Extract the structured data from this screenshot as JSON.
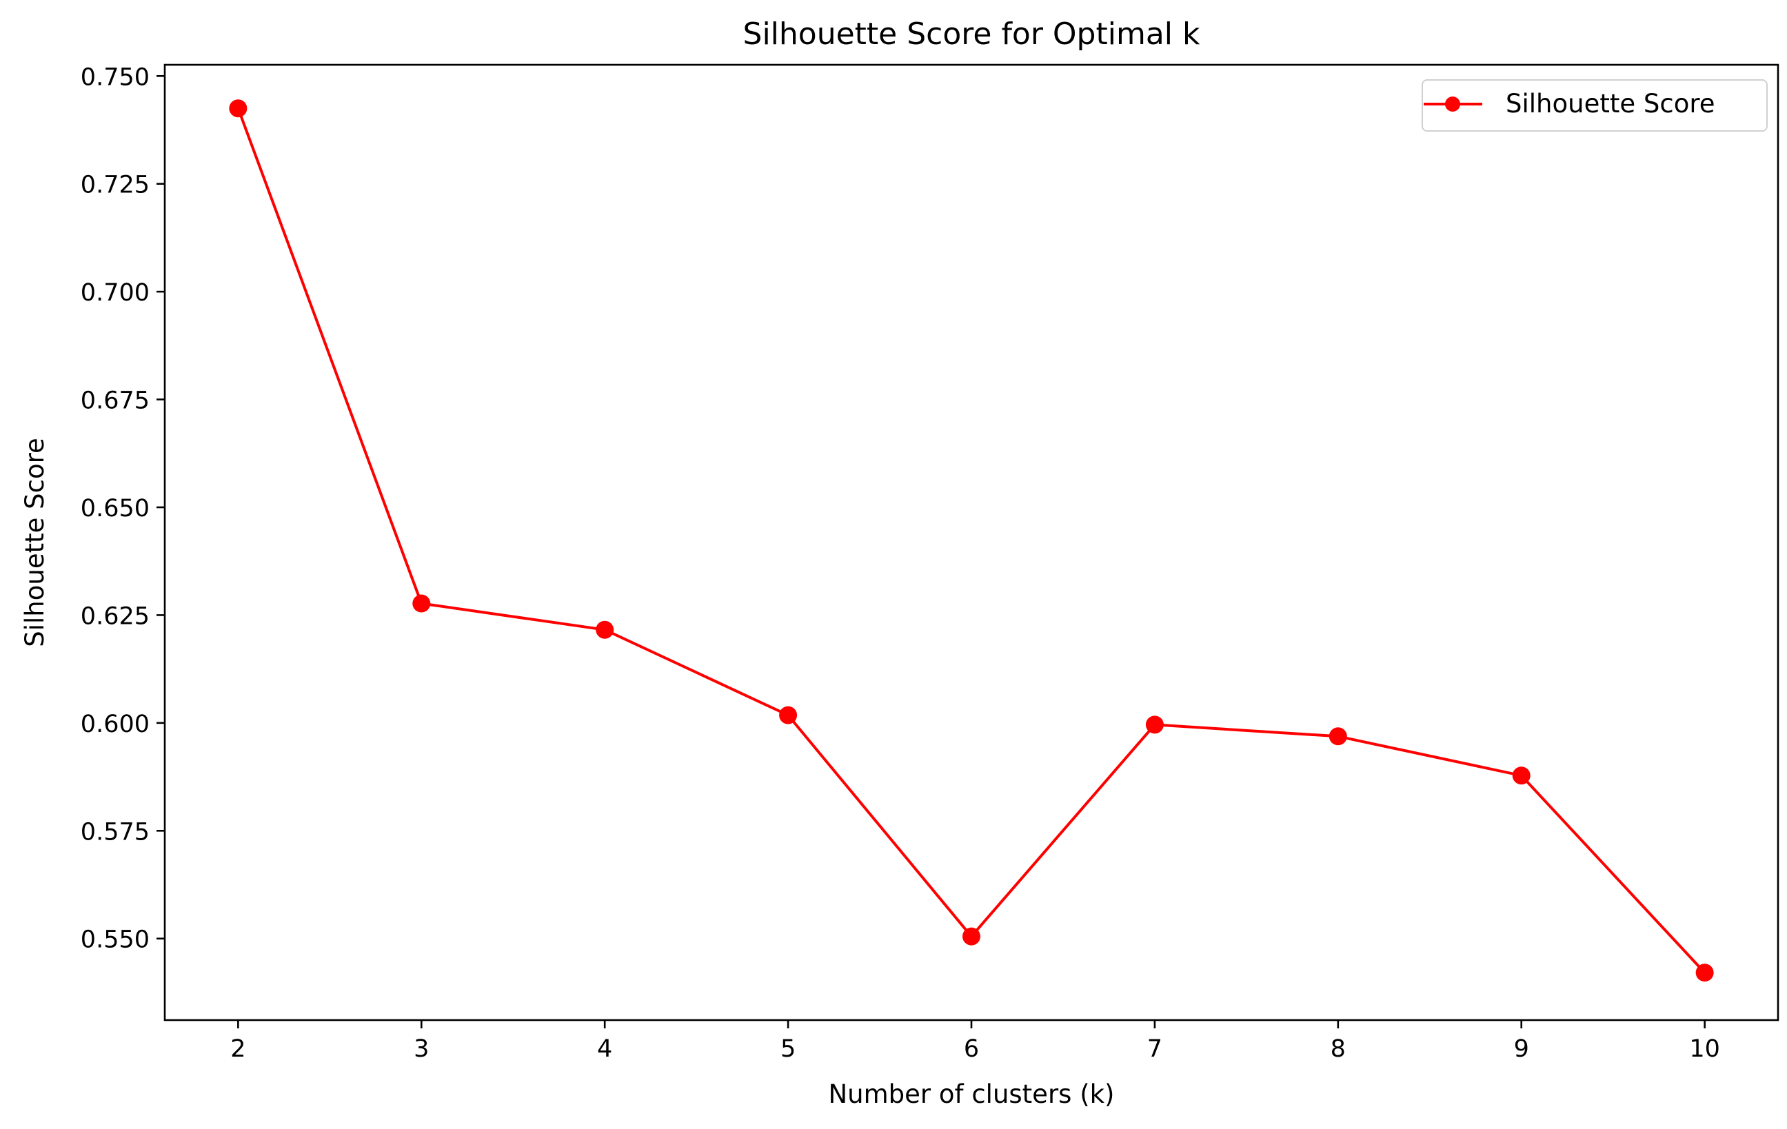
{
  "chart_data": {
    "type": "line",
    "title": "Silhouette Score for Optimal k",
    "xlabel": "Number of clusters (k)",
    "ylabel": "Silhouette Score",
    "x": [
      2,
      3,
      4,
      5,
      6,
      7,
      8,
      9,
      10
    ],
    "series": [
      {
        "name": "Silhouette Score",
        "values": [
          0.7425,
          0.6277,
          0.6216,
          0.6018,
          0.5505,
          0.5996,
          0.5969,
          0.5878,
          0.5421
        ],
        "color": "#ff0000",
        "marker": "circle"
      }
    ],
    "xlim": [
      1.6,
      10.4
    ],
    "ylim": [
      0.5311,
      0.7526
    ],
    "x_ticks": [
      "2",
      "3",
      "4",
      "5",
      "6",
      "7",
      "8",
      "9",
      "10"
    ],
    "y_ticks": [
      "0.550",
      "0.575",
      "0.600",
      "0.625",
      "0.650",
      "0.675",
      "0.700",
      "0.725",
      "0.750"
    ],
    "grid": false,
    "legend": "top-right"
  }
}
